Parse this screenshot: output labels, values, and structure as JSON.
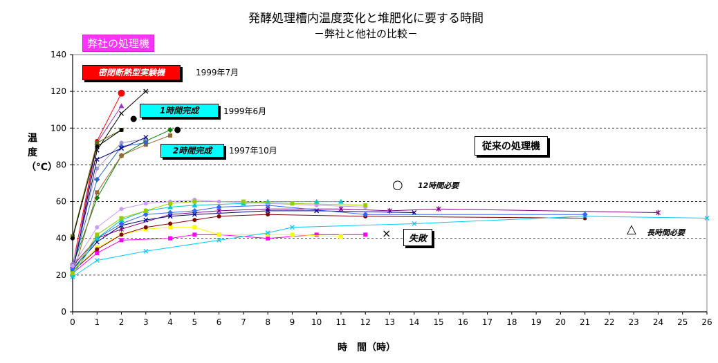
{
  "title": "発酵処理槽内温度変化と堆肥化に要する時間",
  "subtitle": "－弊社と他社の比較－",
  "labels": {
    "own_machines": "弊社の処理機",
    "sealed_experimental": "密閉断熱型実験機",
    "sealed_year": "1999年7月",
    "one_hour": "1時間完成",
    "one_hour_year": "1999年6月",
    "two_hour": "2時間完成",
    "two_hour_year": "1997年10月",
    "conventional": "従来の処理機",
    "twelve_hours": "12時間必要",
    "failure": "失敗",
    "long_time": "長時間必要",
    "circle_symbol": "○",
    "cross_symbol": "×",
    "triangle_symbol": "△"
  },
  "chart_data": {
    "type": "line",
    "title": "発酵処理槽内温度変化と堆肥化に要する時間",
    "subtitle": "－弊社と他社の比較－",
    "xlabel": "時　間（時）",
    "ylabel": "温度（℃）",
    "xlim": [
      0,
      26
    ],
    "ylim": [
      0,
      140
    ],
    "x_ticks": [
      0,
      1,
      2,
      3,
      4,
      5,
      6,
      7,
      8,
      9,
      10,
      11,
      12,
      13,
      14,
      15,
      16,
      17,
      18,
      19,
      20,
      21,
      22,
      23,
      24,
      25,
      26
    ],
    "y_ticks": [
      0,
      20,
      40,
      60,
      80,
      100,
      120,
      140
    ],
    "grid": "horizontal dashed",
    "series": [
      {
        "color": "#ff0000",
        "marker": "circle",
        "points": [
          [
            0,
            25
          ],
          [
            1,
            93
          ],
          [
            2,
            119
          ]
        ]
      },
      {
        "color": "#000000",
        "marker": "cross",
        "points": [
          [
            0,
            22
          ],
          [
            1,
            88
          ],
          [
            2,
            108
          ],
          [
            3,
            120
          ]
        ]
      },
      {
        "color": "#9933cc",
        "marker": "triangle",
        "points": [
          [
            0,
            21
          ],
          [
            1,
            92
          ],
          [
            2,
            112
          ]
        ]
      },
      {
        "color": "#666600",
        "marker": "square",
        "points": [
          [
            0,
            41
          ],
          [
            1,
            92
          ],
          [
            2,
            99
          ]
        ]
      },
      {
        "color": "#000000",
        "marker": "circle",
        "points": [
          [
            0,
            40
          ],
          [
            1,
            90
          ],
          [
            2,
            99
          ]
        ]
      },
      {
        "color": "#008000",
        "marker": "diamond",
        "points": [
          [
            0,
            25
          ],
          [
            1,
            62
          ],
          [
            2,
            85
          ],
          [
            3,
            93
          ],
          [
            4,
            99
          ]
        ]
      },
      {
        "color": "#996633",
        "marker": "square",
        "points": [
          [
            0,
            20
          ],
          [
            1,
            65
          ],
          [
            2,
            85
          ],
          [
            3,
            91
          ],
          [
            4,
            96
          ]
        ]
      },
      {
        "color": "#9999cc",
        "marker": "circle",
        "points": [
          [
            0,
            26
          ],
          [
            1,
            78
          ],
          [
            2,
            92
          ],
          [
            3,
            94
          ]
        ]
      },
      {
        "color": "#3366cc",
        "marker": "diamond",
        "points": [
          [
            0,
            24
          ],
          [
            1,
            72
          ],
          [
            2,
            90
          ],
          [
            3,
            92
          ]
        ]
      },
      {
        "color": "#000080",
        "marker": "cross",
        "points": [
          [
            0,
            22
          ],
          [
            1,
            83
          ],
          [
            2,
            89
          ],
          [
            3,
            95
          ]
        ]
      },
      {
        "color": "#ff00ff",
        "marker": "square",
        "points": [
          [
            0,
            21
          ],
          [
            1,
            32
          ],
          [
            2,
            39
          ],
          [
            4,
            40
          ],
          [
            5,
            42
          ],
          [
            6,
            42
          ],
          [
            8,
            40
          ],
          [
            10,
            42
          ],
          [
            12,
            42
          ]
        ]
      },
      {
        "color": "#ffff00",
        "marker": "square",
        "points": [
          [
            0,
            22
          ],
          [
            1,
            35
          ],
          [
            2,
            42
          ],
          [
            3,
            45
          ],
          [
            4,
            46
          ],
          [
            5,
            46
          ],
          [
            6,
            42
          ],
          [
            8,
            42
          ],
          [
            9,
            42
          ],
          [
            11,
            41
          ]
        ]
      },
      {
        "color": "#800000",
        "marker": "circle",
        "points": [
          [
            0,
            22
          ],
          [
            1,
            34
          ],
          [
            2,
            42
          ],
          [
            3,
            46
          ],
          [
            4,
            48
          ],
          [
            5,
            50
          ],
          [
            6,
            52
          ],
          [
            8,
            53
          ],
          [
            12,
            52
          ],
          [
            21,
            51
          ]
        ]
      },
      {
        "color": "#00ccff",
        "marker": "cross",
        "points": [
          [
            0,
            19
          ],
          [
            1,
            28
          ],
          [
            3,
            33
          ],
          [
            6,
            39
          ],
          [
            8,
            43
          ],
          [
            9,
            46
          ],
          [
            14,
            48
          ],
          [
            21,
            52
          ],
          [
            26,
            51
          ]
        ]
      },
      {
        "color": "#800080",
        "marker": "star",
        "points": [
          [
            0,
            25
          ],
          [
            1,
            40
          ],
          [
            2,
            45
          ],
          [
            4,
            53
          ],
          [
            6,
            55
          ],
          [
            8,
            56
          ],
          [
            11,
            56
          ],
          [
            13,
            55
          ],
          [
            15,
            56
          ],
          [
            24,
            54
          ]
        ]
      },
      {
        "color": "#000080",
        "marker": "cross",
        "points": [
          [
            0,
            23
          ],
          [
            1,
            38
          ],
          [
            2,
            47
          ],
          [
            3,
            50
          ],
          [
            4,
            52
          ],
          [
            5,
            53
          ],
          [
            8,
            55
          ],
          [
            10,
            55
          ],
          [
            14,
            54
          ]
        ]
      },
      {
        "color": "#3366ff",
        "marker": "diamond",
        "points": [
          [
            0,
            23
          ],
          [
            1,
            40
          ],
          [
            2,
            48
          ],
          [
            3,
            53
          ],
          [
            4,
            54
          ],
          [
            5,
            55
          ],
          [
            6,
            57
          ],
          [
            8,
            58
          ],
          [
            12,
            53
          ],
          [
            21,
            53
          ]
        ]
      },
      {
        "color": "#cc99ff",
        "marker": "circle",
        "points": [
          [
            0,
            25
          ],
          [
            1,
            46
          ],
          [
            2,
            56
          ],
          [
            3,
            59
          ],
          [
            4,
            60
          ],
          [
            5,
            61
          ],
          [
            6,
            60
          ],
          [
            8,
            59
          ],
          [
            10,
            58
          ],
          [
            12,
            57
          ]
        ]
      },
      {
        "color": "#00cccc",
        "marker": "triangle",
        "points": [
          [
            0,
            20
          ],
          [
            1,
            40
          ],
          [
            2,
            50
          ],
          [
            3,
            55
          ],
          [
            4,
            57
          ],
          [
            5,
            58
          ],
          [
            7,
            59
          ],
          [
            8,
            60
          ],
          [
            10,
            60
          ],
          [
            11,
            60
          ]
        ]
      },
      {
        "color": "#99cc00",
        "marker": "square",
        "points": [
          [
            0,
            21
          ],
          [
            1,
            42
          ],
          [
            2,
            51
          ],
          [
            3,
            55
          ],
          [
            4,
            59
          ],
          [
            5,
            60
          ],
          [
            7,
            60
          ],
          [
            9,
            59
          ],
          [
            12,
            58
          ]
        ]
      }
    ],
    "markers_standalone": [
      {
        "x": 2.5,
        "y": 105,
        "color": "#000000",
        "marker": "circle"
      },
      {
        "x": 4.3,
        "y": 99,
        "color": "#000000",
        "marker": "circle"
      }
    ]
  }
}
